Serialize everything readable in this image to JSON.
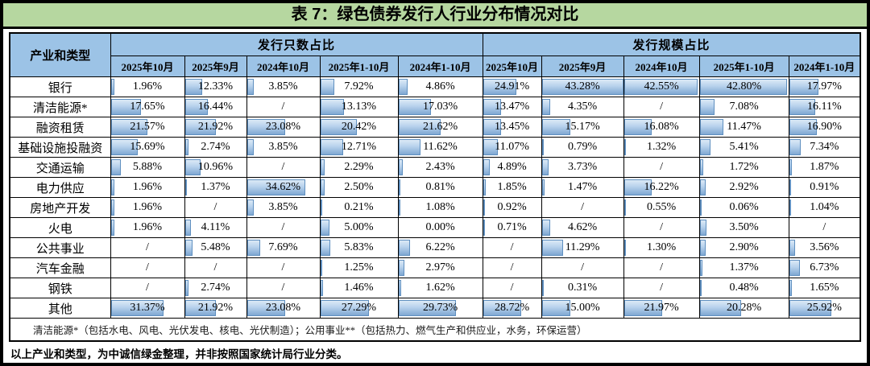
{
  "title": "表 7：绿色债券发行人行业分布情况对比",
  "colors": {
    "title_bg": "#b6d7a0",
    "header_bg": "#9cc3e6",
    "bar_fill_top": "#dce9f6",
    "bar_fill_bottom": "#7fa8d2",
    "bar_border": "#6090c0"
  },
  "table": {
    "corner_header": "产业和类型",
    "groups": [
      {
        "label": "发行只数占比",
        "columns": [
          "2025年10月",
          "2025年9月",
          "2024年10月",
          "2025年1-10月",
          "2024年1-10月"
        ]
      },
      {
        "label": "发行规模占比",
        "columns": [
          "2025年10月",
          "2025年9月",
          "2024年10月",
          "2025年1-10月",
          "2024年1-10月"
        ]
      }
    ],
    "rows": [
      {
        "label": "银行",
        "count": [
          "1.96%",
          "12.33%",
          "3.85%",
          "7.92%",
          "4.86%"
        ],
        "scale": [
          "24.91%",
          "43.28%",
          "42.55%",
          "42.80%",
          "17.97%"
        ]
      },
      {
        "label": "清洁能源*",
        "count": [
          "17.65%",
          "16.44%",
          "/",
          "13.13%",
          "17.03%"
        ],
        "scale": [
          "13.47%",
          "4.35%",
          "/",
          "7.08%",
          "16.11%"
        ]
      },
      {
        "label": "融资租赁",
        "count": [
          "21.57%",
          "21.92%",
          "23.08%",
          "20.42%",
          "21.62%"
        ],
        "scale": [
          "13.45%",
          "15.17%",
          "16.08%",
          "11.47%",
          "16.90%"
        ]
      },
      {
        "label": "基础设施投融资",
        "count": [
          "15.69%",
          "2.74%",
          "3.85%",
          "12.71%",
          "11.62%"
        ],
        "scale": [
          "11.07%",
          "0.79%",
          "1.32%",
          "5.41%",
          "7.34%"
        ]
      },
      {
        "label": "交通运输",
        "count": [
          "5.88%",
          "10.96%",
          "/",
          "2.29%",
          "2.43%"
        ],
        "scale": [
          "4.89%",
          "3.73%",
          "/",
          "1.72%",
          "1.87%"
        ]
      },
      {
        "label": "电力供应",
        "count": [
          "1.96%",
          "1.37%",
          "34.62%",
          "2.50%",
          "0.81%"
        ],
        "scale": [
          "1.85%",
          "1.47%",
          "16.22%",
          "2.92%",
          "0.91%"
        ]
      },
      {
        "label": "房地产开发",
        "count": [
          "1.96%",
          "/",
          "3.85%",
          "0.21%",
          "1.08%"
        ],
        "scale": [
          "0.92%",
          "/",
          "0.55%",
          "0.06%",
          "1.04%"
        ]
      },
      {
        "label": "火电",
        "count": [
          "1.96%",
          "4.11%",
          "/",
          "5.00%",
          "0.00%"
        ],
        "scale": [
          "0.71%",
          "4.62%",
          "/",
          "3.50%",
          "/"
        ]
      },
      {
        "label": "公共事业",
        "count": [
          "/",
          "5.48%",
          "7.69%",
          "5.83%",
          "6.22%"
        ],
        "scale": [
          "/",
          "11.29%",
          "1.30%",
          "2.90%",
          "3.56%"
        ]
      },
      {
        "label": "汽车金融",
        "count": [
          "/",
          "/",
          "/",
          "1.25%",
          "2.97%"
        ],
        "scale": [
          "/",
          "/",
          "/",
          "1.37%",
          "6.73%"
        ]
      },
      {
        "label": "钢铁",
        "count": [
          "/",
          "2.74%",
          "/",
          "1.46%",
          "1.62%"
        ],
        "scale": [
          "/",
          "0.31%",
          "/",
          "0.48%",
          "1.65%"
        ]
      },
      {
        "label": "其他",
        "count": [
          "31.37%",
          "21.92%",
          "23.08%",
          "27.29%",
          "29.73%"
        ],
        "scale": [
          "28.72%",
          "15.00%",
          "21.97%",
          "20.28%",
          "25.92%"
        ]
      }
    ],
    "footnote": "清洁能源*（包括水电、风电、光伏发电、核电、光伏制造）；公用事业**（包括热力、燃气生产和供应业，水务，环保运营）"
  },
  "note": "以上产业和类型，为中诚信绿金整理，并非按照国家统计局行业分类。"
}
